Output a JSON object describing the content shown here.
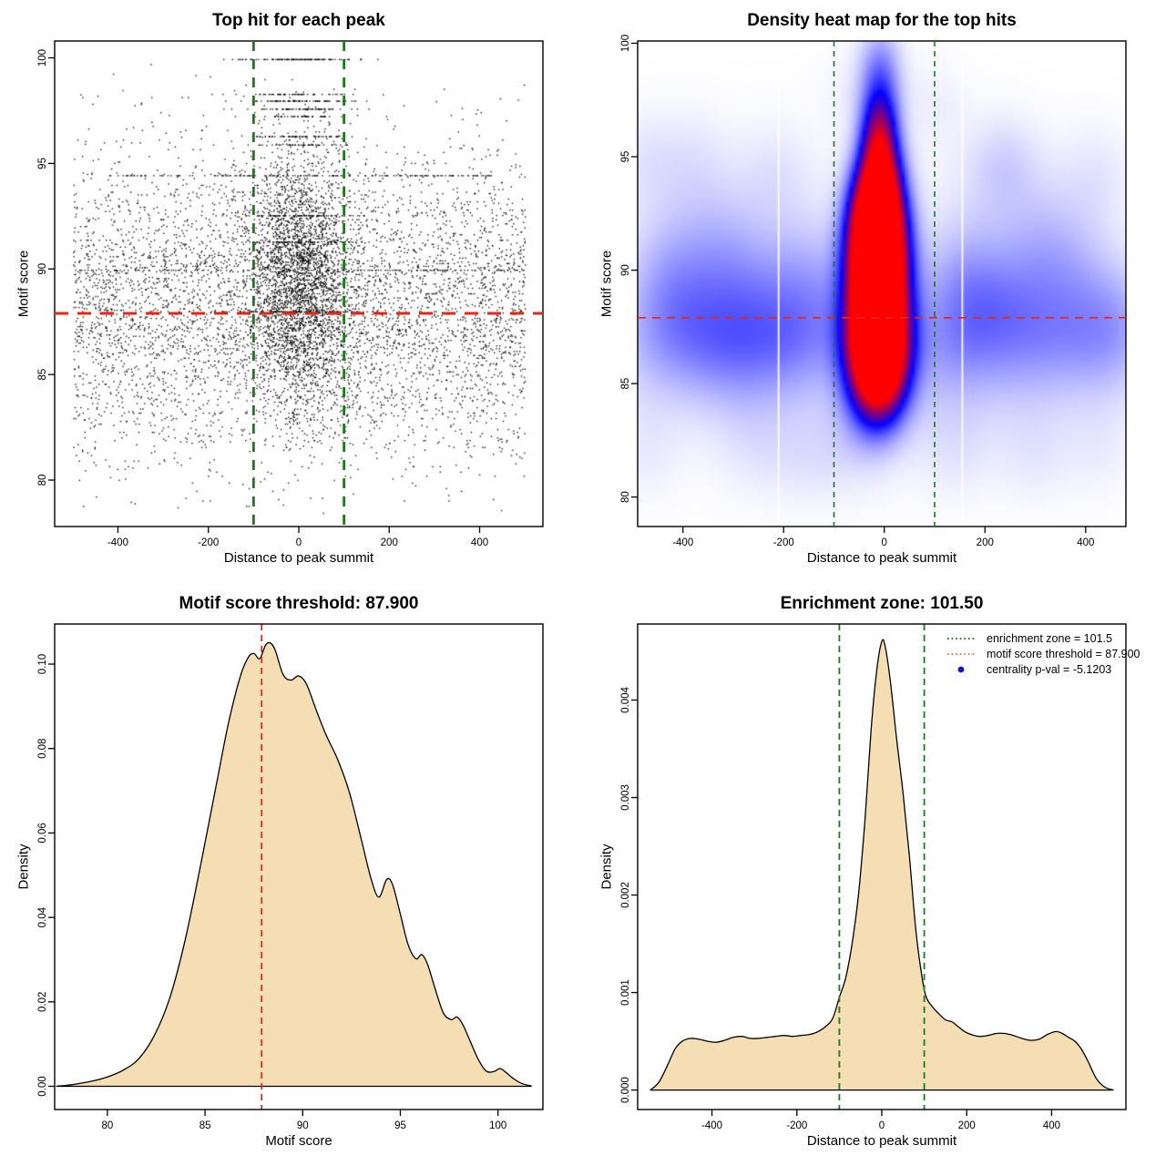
{
  "figure": {
    "background": "#ffffff"
  },
  "colors": {
    "point": "#000000",
    "threshold_red": "#e02818",
    "zone_green": "#1b7a1b",
    "density_fill": "#f5deb3",
    "density_stroke": "#000000",
    "heat_low": "#ffffff",
    "heat_mid": "#0000ff",
    "heat_high": "#ff0000",
    "legend_dot_blue": "#1212cc",
    "legend_red": "#f07060"
  },
  "chart_data": [
    {
      "type": "scatter",
      "title": "Top hit for each peak",
      "xlabel": "Distance to peak summit",
      "ylabel": "Motif score",
      "xlim": [
        -540,
        540
      ],
      "ylim": [
        77.8,
        100.8
      ],
      "xticks": [
        -400,
        -200,
        0,
        200,
        400
      ],
      "xtick_labels": [
        "-400",
        "-200",
        "0",
        "200",
        "400"
      ],
      "yticks": [
        80,
        85,
        90,
        95,
        100
      ],
      "ytick_labels": [
        "80",
        "85",
        "90",
        "95",
        "100"
      ],
      "vlines": {
        "x": [
          -100,
          100
        ],
        "color": "#1b7a1b",
        "width": 2.8,
        "dash": "11 9"
      },
      "hline": {
        "y": 87.9,
        "color": "#e02818",
        "width": 3,
        "dash": "15 10"
      },
      "point_color": "#000000",
      "generator": {
        "seed": 42,
        "quantize_step": 0.065,
        "background": {
          "n": 5200,
          "x_min": -500,
          "x_max": 500,
          "y_mean": 88.2,
          "y_sd": 3.6,
          "y_min": 78.4,
          "y_max": 100.2
        },
        "cluster": {
          "n": 2800,
          "x_mean": 0,
          "x_sd": 58,
          "x_clip": 170,
          "y_mean": 89.4,
          "y_sd": 3.1,
          "y_min": 80.2,
          "y_max": 100.2
        },
        "rows": [
          {
            "y": 99.95,
            "n": 110,
            "x_sd": 65
          },
          {
            "y": 98.3,
            "n": 55,
            "x_sd": 70
          },
          {
            "y": 97.98,
            "n": 80,
            "x_sd": 70
          },
          {
            "y": 97.6,
            "n": 65,
            "x_sd": 60
          },
          {
            "y": 97.25,
            "n": 42,
            "x_sd": 60
          },
          {
            "y": 96.3,
            "n": 62,
            "x_sd": 62
          },
          {
            "y": 95.9,
            "n": 45,
            "x_sd": 58
          },
          {
            "y": 94.45,
            "n": 150,
            "x_uniform": 430
          },
          {
            "y": 89.97,
            "n": 130,
            "x_uniform": 500
          },
          {
            "y": 92.55,
            "n": 70,
            "x_sd": 80
          },
          {
            "y": 91.3,
            "n": 70,
            "x_sd": 75
          },
          {
            "y": 88.0,
            "n": 90,
            "x_sd": 85
          }
        ]
      }
    },
    {
      "type": "heatmap",
      "title": "Density heat map for the top hits",
      "xlabel": "Distance to peak summit",
      "ylabel": "Motif score",
      "xlim": [
        -490,
        480
      ],
      "ylim": [
        78.7,
        100.1
      ],
      "xticks": [
        -400,
        -200,
        0,
        200,
        400
      ],
      "xtick_labels": [
        "-400",
        "-200",
        "0",
        "200",
        "400"
      ],
      "yticks": [
        80,
        85,
        90,
        95,
        100
      ],
      "ytick_labels": [
        "80",
        "85",
        "90",
        "95",
        "100"
      ],
      "vlines": {
        "x": [
          -100,
          100
        ],
        "color": "#1b7a1b",
        "width": 1.6,
        "dash": "6 5"
      },
      "hline": {
        "y": 87.9,
        "color": "#e02818",
        "width": 1.6,
        "dash": "9 7"
      },
      "white_lines": [
        -210,
        155
      ],
      "colormap": {
        "low": "#ffffff",
        "mid": "#0000ff",
        "high": "#ff0000"
      },
      "blobs": [
        [
          -14,
          88.3,
          40,
          2.4,
          1.05
        ],
        [
          -13,
          90.8,
          38,
          2.1,
          1.0
        ],
        [
          -16,
          92.3,
          36,
          1.7,
          0.8
        ],
        [
          -12,
          86.3,
          42,
          1.7,
          0.85
        ],
        [
          -8,
          94.3,
          30,
          1.4,
          0.5
        ],
        [
          -10,
          96.1,
          26,
          1.3,
          0.45
        ],
        [
          -6,
          97.9,
          30,
          1.5,
          0.26
        ],
        [
          -12,
          84.6,
          40,
          1.5,
          0.28
        ],
        [
          -10,
          99.6,
          33,
          1.2,
          0.13
        ],
        [
          -460,
          86.8,
          70,
          2.2,
          0.12
        ],
        [
          -430,
          90.6,
          65,
          2.0,
          0.1
        ],
        [
          -400,
          88.5,
          70,
          2.2,
          0.11
        ],
        [
          -380,
          94.8,
          60,
          1.8,
          0.08
        ],
        [
          -350,
          87.0,
          70,
          2.0,
          0.1
        ],
        [
          -320,
          91.5,
          60,
          1.9,
          0.09
        ],
        [
          -300,
          86.3,
          65,
          2.2,
          0.11
        ],
        [
          -270,
          89.8,
          60,
          1.8,
          0.08
        ],
        [
          -240,
          87.2,
          65,
          2.0,
          0.1
        ],
        [
          -215,
          94.3,
          55,
          1.7,
          0.08
        ],
        [
          -190,
          86.8,
          60,
          2.0,
          0.1
        ],
        [
          -160,
          90.3,
          55,
          1.8,
          0.09
        ],
        [
          -130,
          87.6,
          55,
          2.0,
          0.1
        ],
        [
          -480,
          81.8,
          55,
          1.6,
          0.06
        ],
        [
          -250,
          82.0,
          60,
          1.6,
          0.06
        ],
        [
          -60,
          82.3,
          55,
          1.6,
          0.07
        ],
        [
          130,
          86.9,
          60,
          2.2,
          0.12
        ],
        [
          160,
          90.2,
          55,
          1.9,
          0.1
        ],
        [
          190,
          87.5,
          60,
          2.0,
          0.1
        ],
        [
          215,
          94.4,
          55,
          1.7,
          0.08
        ],
        [
          245,
          89.0,
          60,
          1.9,
          0.09
        ],
        [
          275,
          86.5,
          65,
          2.1,
          0.1
        ],
        [
          305,
          91.8,
          60,
          1.9,
          0.09
        ],
        [
          335,
          87.8,
          65,
          2.0,
          0.09
        ],
        [
          365,
          90.5,
          60,
          1.8,
          0.08
        ],
        [
          395,
          86.6,
          65,
          2.0,
          0.09
        ],
        [
          420,
          94.2,
          55,
          1.7,
          0.08
        ],
        [
          450,
          88.3,
          65,
          2.1,
          0.1
        ],
        [
          475,
          86.9,
          60,
          2.0,
          0.09
        ],
        [
          140,
          82.0,
          55,
          1.6,
          0.06
        ],
        [
          300,
          81.8,
          55,
          1.6,
          0.06
        ],
        [
          430,
          82.0,
          50,
          1.5,
          0.05
        ],
        [
          -480,
          95.0,
          50,
          1.6,
          0.07
        ],
        [
          100,
          97.4,
          45,
          1.4,
          0.06
        ],
        [
          -70,
          97.8,
          45,
          1.3,
          0.05
        ],
        [
          255,
          95.0,
          50,
          1.5,
          0.06
        ],
        [
          -150,
          81.5,
          50,
          1.5,
          0.05
        ],
        [
          0,
          88.6,
          340,
          4.6,
          0.07
        ],
        [
          0,
          85.8,
          340,
          3.2,
          0.05
        ]
      ]
    },
    {
      "type": "area",
      "title": "Motif score threshold: 87.900",
      "xlabel": "Motif score",
      "ylabel": "Density",
      "xlim": [
        77.3,
        102.3
      ],
      "ylim": [
        -0.0055,
        0.1095
      ],
      "xticks": [
        80,
        85,
        90,
        95,
        100
      ],
      "xtick_labels": [
        "80",
        "85",
        "90",
        "95",
        "100"
      ],
      "yticks": [
        0,
        0.02,
        0.04,
        0.06,
        0.08,
        0.1
      ],
      "ytick_labels": [
        "0.00",
        "0.02",
        "0.04",
        "0.06",
        "0.08",
        "0.10"
      ],
      "vlines": {
        "x": [
          87.9
        ],
        "color": "#e02818",
        "width": 1.8,
        "dash": "7 5"
      },
      "fill": "#f5deb3",
      "stroke": "#000000",
      "points": [
        [
          77.4,
          0
        ],
        [
          78.2,
          0.0004
        ],
        [
          79.2,
          0.0012
        ],
        [
          80,
          0.0022
        ],
        [
          80.8,
          0.0038
        ],
        [
          81.6,
          0.0065
        ],
        [
          82.4,
          0.012
        ],
        [
          83.2,
          0.021
        ],
        [
          84,
          0.035
        ],
        [
          84.8,
          0.053
        ],
        [
          85.6,
          0.072
        ],
        [
          86.2,
          0.086
        ],
        [
          86.8,
          0.097
        ],
        [
          87.2,
          0.1015
        ],
        [
          87.5,
          0.1025
        ],
        [
          87.8,
          0.1013
        ],
        [
          88.1,
          0.1045
        ],
        [
          88.35,
          0.105
        ],
        [
          88.6,
          0.1032
        ],
        [
          89,
          0.0975
        ],
        [
          89.4,
          0.0962
        ],
        [
          89.8,
          0.0972
        ],
        [
          90.2,
          0.0952
        ],
        [
          90.7,
          0.089
        ],
        [
          91.2,
          0.0832
        ],
        [
          91.8,
          0.0773
        ],
        [
          92.4,
          0.0695
        ],
        [
          93,
          0.0585
        ],
        [
          93.5,
          0.0492
        ],
        [
          93.9,
          0.0448
        ],
        [
          94.3,
          0.049
        ],
        [
          94.6,
          0.0478
        ],
        [
          95,
          0.0408
        ],
        [
          95.4,
          0.0335
        ],
        [
          95.8,
          0.0302
        ],
        [
          96.1,
          0.0312
        ],
        [
          96.4,
          0.0288
        ],
        [
          96.8,
          0.0228
        ],
        [
          97.2,
          0.0174
        ],
        [
          97.6,
          0.0158
        ],
        [
          97.9,
          0.0164
        ],
        [
          98.2,
          0.0146
        ],
        [
          98.6,
          0.0104
        ],
        [
          99,
          0.0063
        ],
        [
          99.4,
          0.0036
        ],
        [
          99.8,
          0.0035
        ],
        [
          100.1,
          0.0042
        ],
        [
          100.4,
          0.0033
        ],
        [
          100.8,
          0.0018
        ],
        [
          101.2,
          0.0007
        ],
        [
          101.7,
          0.0001
        ]
      ]
    },
    {
      "type": "area",
      "title": "Enrichment zone: 101.50",
      "xlabel": "Distance to peak summit",
      "ylabel": "Density",
      "xlim": [
        -575,
        575
      ],
      "ylim": [
        -0.0002,
        0.00478
      ],
      "xticks": [
        -400,
        -200,
        0,
        200,
        400
      ],
      "xtick_labels": [
        "-400",
        "-200",
        "0",
        "200",
        "400"
      ],
      "yticks": [
        0,
        0.001,
        0.002,
        0.003,
        0.004
      ],
      "ytick_labels": [
        "0.000",
        "0.001",
        "0.002",
        "0.003",
        "0.004"
      ],
      "vlines": {
        "x": [
          -100,
          100
        ],
        "color": "#1b7a1b",
        "width": 1.8,
        "dash": "7 5"
      },
      "fill": "#f5deb3",
      "stroke": "#000000",
      "points": [
        [
          -545,
          0
        ],
        [
          -525,
          8e-05
        ],
        [
          -505,
          0.00025
        ],
        [
          -487,
          0.00042
        ],
        [
          -470,
          0.0005
        ],
        [
          -450,
          0.00053
        ],
        [
          -430,
          0.00052
        ],
        [
          -410,
          0.0005
        ],
        [
          -390,
          0.00049
        ],
        [
          -370,
          0.00051
        ],
        [
          -350,
          0.00054
        ],
        [
          -330,
          0.00055
        ],
        [
          -310,
          0.00053
        ],
        [
          -290,
          0.00053
        ],
        [
          -270,
          0.00054
        ],
        [
          -250,
          0.00055
        ],
        [
          -230,
          0.00056
        ],
        [
          -210,
          0.00055
        ],
        [
          -190,
          0.00056
        ],
        [
          -170,
          0.00057
        ],
        [
          -150,
          0.0006
        ],
        [
          -130,
          0.00066
        ],
        [
          -115,
          0.00074
        ],
        [
          -100,
          0.00095
        ],
        [
          -85,
          0.00115
        ],
        [
          -70,
          0.0015
        ],
        [
          -55,
          0.002
        ],
        [
          -40,
          0.00275
        ],
        [
          -25,
          0.0037
        ],
        [
          -12,
          0.0043
        ],
        [
          0,
          0.0046
        ],
        [
          8,
          0.00455
        ],
        [
          20,
          0.0042
        ],
        [
          35,
          0.0036
        ],
        [
          50,
          0.00305
        ],
        [
          65,
          0.0024
        ],
        [
          80,
          0.00165
        ],
        [
          95,
          0.00115
        ],
        [
          105,
          0.00095
        ],
        [
          120,
          0.00085
        ],
        [
          135,
          0.00078
        ],
        [
          150,
          0.00072
        ],
        [
          165,
          0.0007
        ],
        [
          180,
          0.00065
        ],
        [
          195,
          0.0006
        ],
        [
          210,
          0.00057
        ],
        [
          230,
          0.00055
        ],
        [
          250,
          0.00056
        ],
        [
          270,
          0.00058
        ],
        [
          290,
          0.00058
        ],
        [
          310,
          0.00056
        ],
        [
          330,
          0.00053
        ],
        [
          350,
          0.00051
        ],
        [
          370,
          0.00052
        ],
        [
          390,
          0.00057
        ],
        [
          410,
          0.0006
        ],
        [
          425,
          0.00058
        ],
        [
          440,
          0.00054
        ],
        [
          455,
          0.0005
        ],
        [
          470,
          0.00042
        ],
        [
          485,
          0.0003
        ],
        [
          505,
          0.00012
        ],
        [
          525,
          3e-05
        ],
        [
          545,
          0
        ]
      ],
      "legend": {
        "entries": [
          {
            "marker": "dotted-line",
            "color": "#1b7a1b",
            "label": "enrichment zone = 101.5"
          },
          {
            "marker": "dotted-line",
            "color": "#f07060",
            "label": "motif score threshold = 87.900"
          },
          {
            "marker": "dot",
            "color": "#1212cc",
            "label": "centrality p-val = -5.1203"
          }
        ]
      }
    }
  ]
}
